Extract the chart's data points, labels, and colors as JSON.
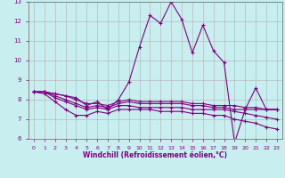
{
  "xlabel": "Windchill (Refroidissement éolien,°C)",
  "background_color": "#c8eef0",
  "grid_color": "#b0b0b0",
  "line_color": "#800080",
  "xlim": [
    -0.5,
    23.5
  ],
  "ylim": [
    6,
    13
  ],
  "xticks": [
    0,
    1,
    2,
    3,
    4,
    5,
    6,
    7,
    8,
    9,
    10,
    11,
    12,
    13,
    14,
    15,
    16,
    17,
    18,
    19,
    20,
    21,
    22,
    23
  ],
  "yticks": [
    6,
    7,
    8,
    9,
    10,
    11,
    12,
    13
  ],
  "series": [
    [
      8.4,
      8.4,
      8.3,
      8.2,
      8.1,
      7.7,
      7.9,
      7.5,
      8.0,
      8.9,
      10.7,
      12.3,
      11.9,
      13.0,
      12.1,
      10.4,
      11.8,
      10.5,
      9.9,
      5.8,
      7.5,
      8.6,
      7.5,
      7.5
    ],
    [
      8.4,
      8.4,
      8.3,
      8.2,
      8.0,
      7.8,
      7.8,
      7.7,
      7.9,
      8.0,
      7.9,
      7.9,
      7.9,
      7.9,
      7.9,
      7.8,
      7.8,
      7.7,
      7.7,
      7.7,
      7.6,
      7.6,
      7.5,
      7.5
    ],
    [
      8.4,
      8.4,
      8.2,
      8.0,
      7.8,
      7.6,
      7.7,
      7.6,
      7.8,
      7.9,
      7.8,
      7.8,
      7.8,
      7.8,
      7.8,
      7.7,
      7.7,
      7.6,
      7.6,
      7.5,
      7.5,
      7.5,
      7.5,
      7.5
    ],
    [
      8.4,
      8.4,
      8.1,
      7.9,
      7.7,
      7.5,
      7.6,
      7.5,
      7.7,
      7.7,
      7.6,
      7.6,
      7.6,
      7.6,
      7.6,
      7.5,
      7.5,
      7.5,
      7.5,
      7.4,
      7.3,
      7.2,
      7.1,
      7.0
    ],
    [
      8.4,
      8.3,
      7.9,
      7.5,
      7.2,
      7.2,
      7.4,
      7.3,
      7.5,
      7.5,
      7.5,
      7.5,
      7.4,
      7.4,
      7.4,
      7.3,
      7.3,
      7.2,
      7.2,
      7.0,
      6.9,
      6.8,
      6.6,
      6.5
    ]
  ],
  "marker_size": 2.0,
  "line_width": 0.8
}
